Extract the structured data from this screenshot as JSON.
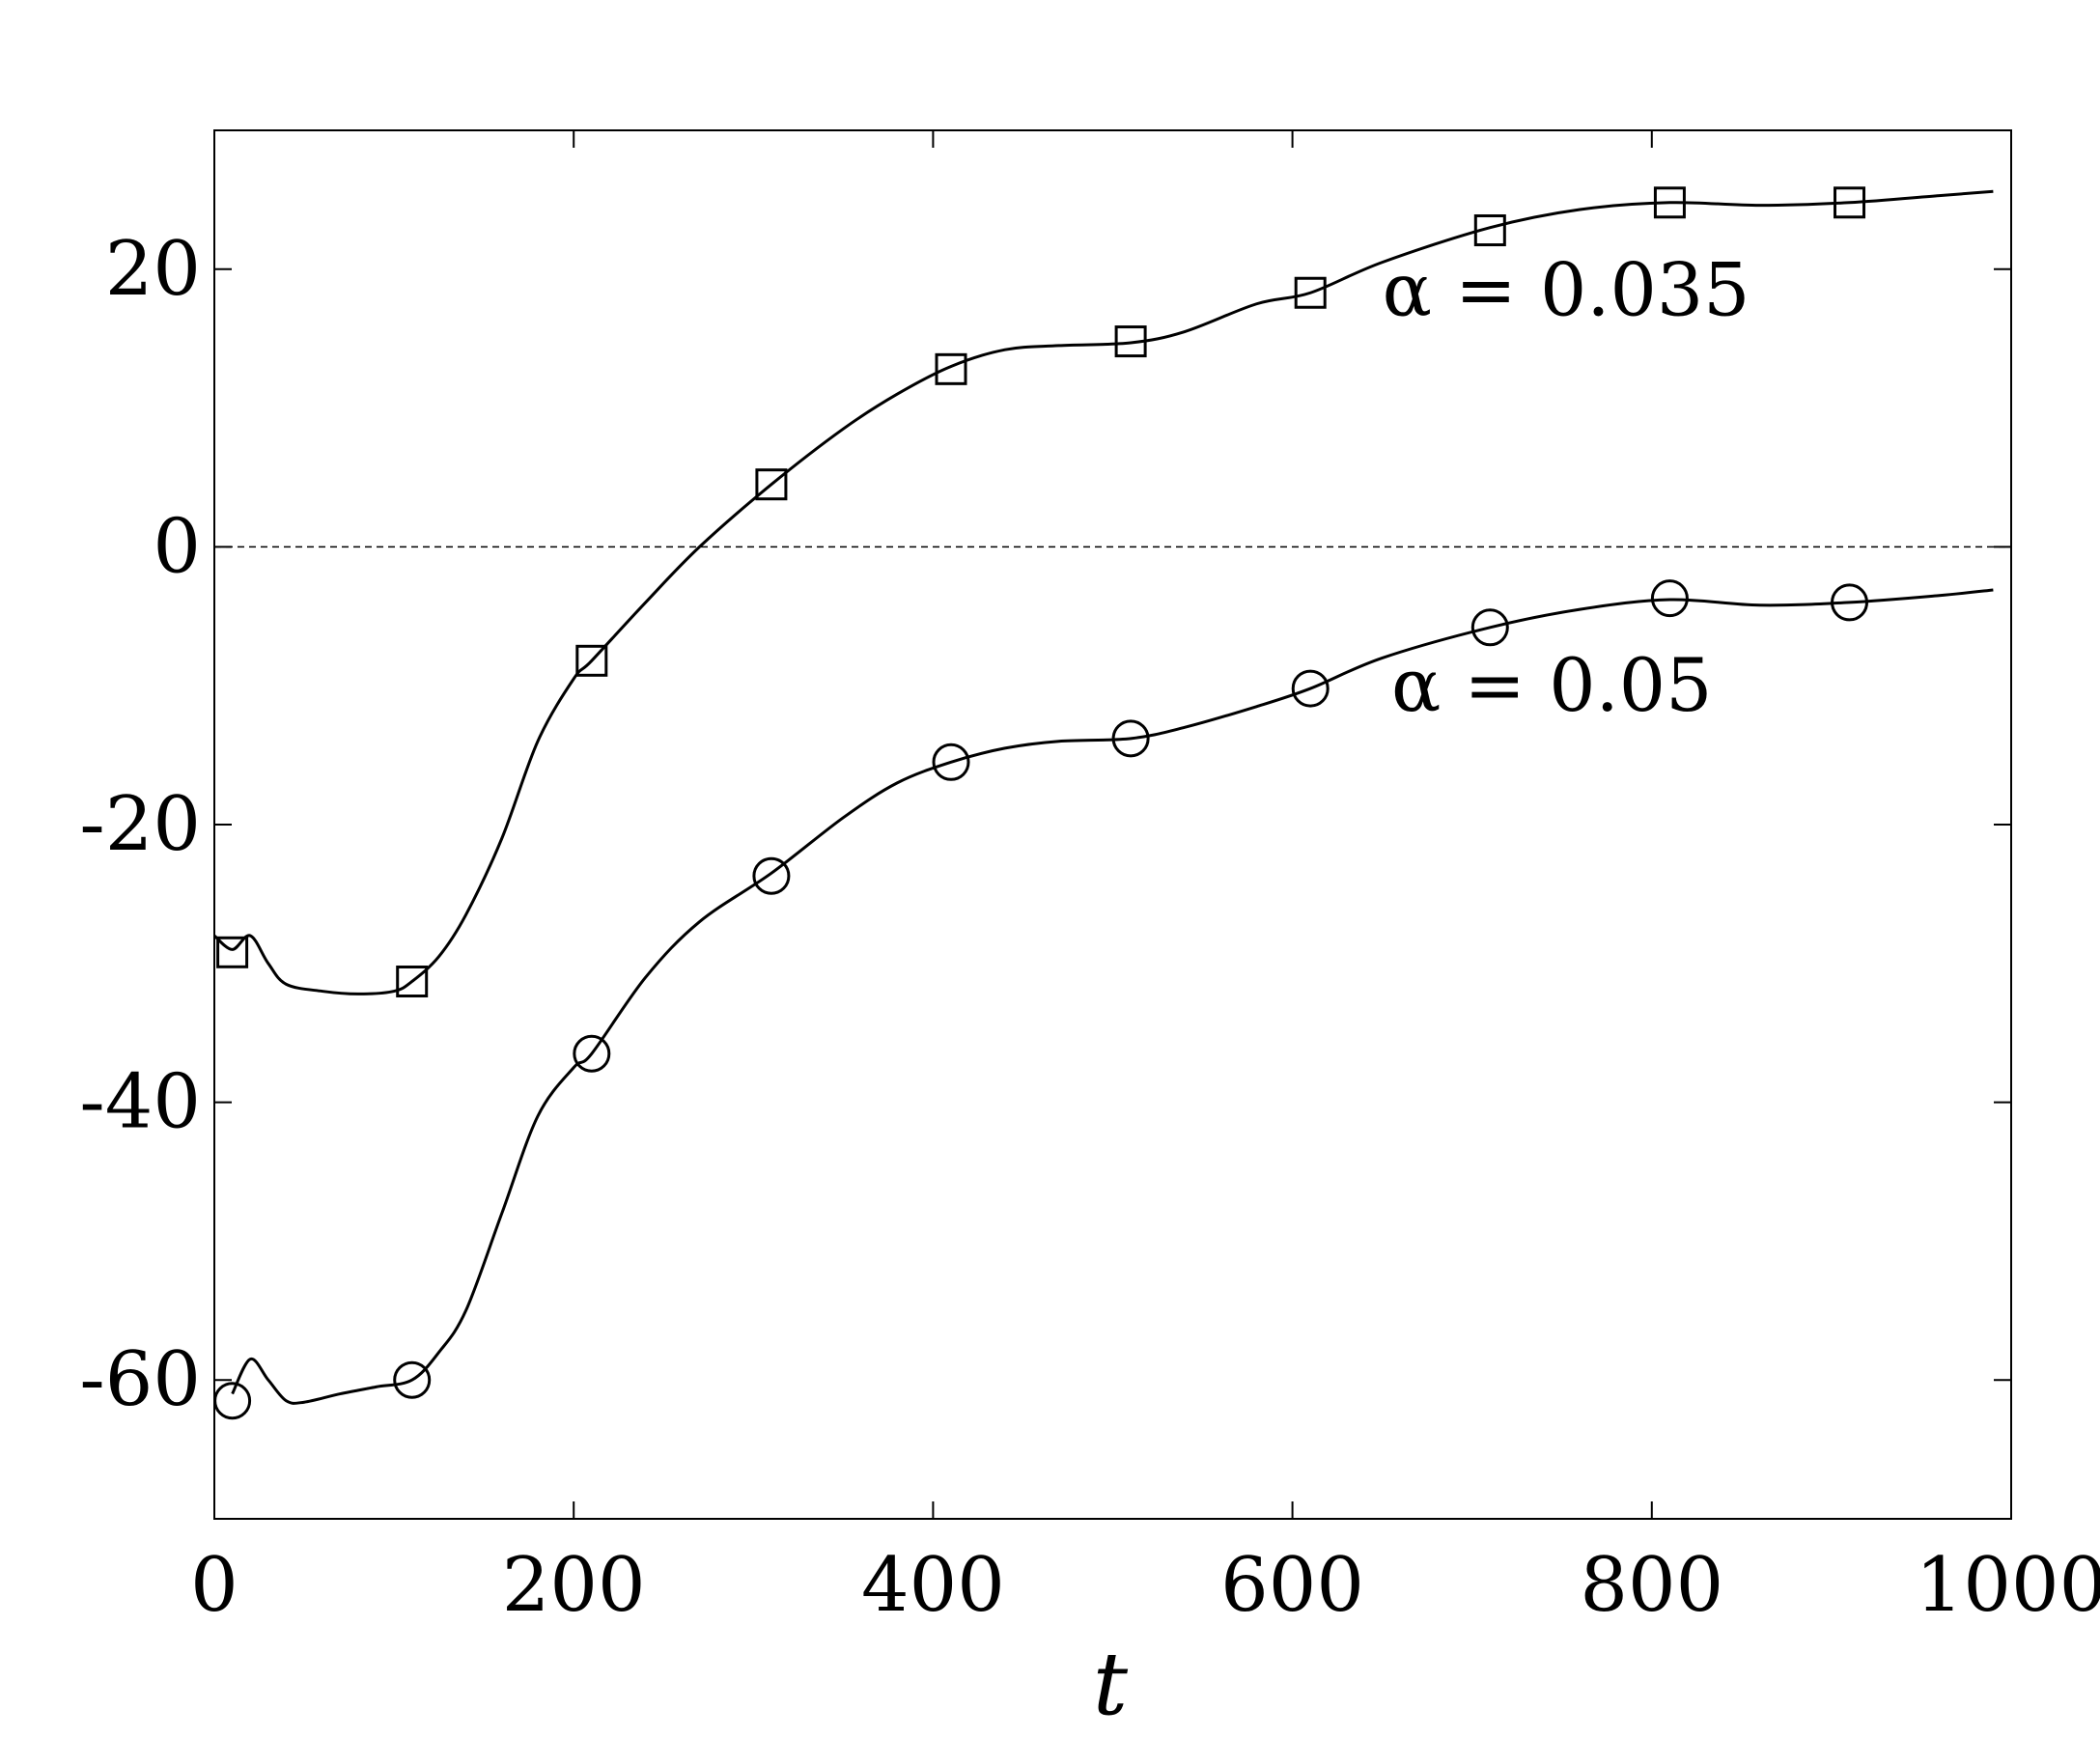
{
  "chart_data": {
    "type": "line",
    "title": "",
    "xlabel": "t",
    "ylabel": "",
    "xlim": [
      0,
      1000
    ],
    "ylim": [
      -70,
      30
    ],
    "xticks": [
      0,
      200,
      400,
      600,
      800,
      1000
    ],
    "xtick_labels": [
      "0",
      "200",
      "400",
      "600",
      "800",
      "1000"
    ],
    "yticks": [
      -60,
      -40,
      -20,
      0,
      20
    ],
    "ytick_labels": [
      "-60",
      "-40",
      "-20",
      "0",
      "20"
    ],
    "grid": false,
    "reference_line": {
      "y": 0,
      "style": "dashed"
    },
    "series": [
      {
        "marker": "square",
        "color": "#000000",
        "x": [
          0,
          10,
          20,
          30,
          40,
          60,
          80,
          100,
          110,
          125,
          140,
          160,
          180,
          200,
          210,
          240,
          270,
          310,
          350,
          380,
          410,
          440,
          470,
          510,
          540,
          580,
          610,
          650,
          710,
          760,
          810,
          860,
          910,
          960,
          990
        ],
        "y": [
          -28,
          -29,
          -28,
          -30,
          -31.5,
          -32,
          -32.2,
          -32,
          -31.3,
          -29.5,
          -26.5,
          -21,
          -14,
          -9.5,
          -8.2,
          -4,
          0,
          4.5,
          8.5,
          11,
          13,
          14.2,
          14.5,
          14.7,
          15.5,
          17.5,
          18.3,
          20.5,
          23,
          24.3,
          24.8,
          24.6,
          24.8,
          25.3,
          25.6
        ],
        "marker_x": [
          10,
          110,
          210,
          310,
          410,
          510,
          610,
          710,
          810,
          910
        ],
        "marker_y": [
          -29.2,
          -31.3,
          -8.2,
          4.5,
          12.8,
          14.8,
          18.3,
          22.8,
          24.8,
          24.8
        ]
      },
      {
        "marker": "circle",
        "color": "#000000",
        "x": [
          10,
          20,
          30,
          40,
          50,
          70,
          90,
          110,
          125,
          140,
          160,
          180,
          200,
          210,
          240,
          270,
          310,
          350,
          380,
          410,
          440,
          470,
          510,
          540,
          580,
          610,
          650,
          710,
          760,
          810,
          860,
          910,
          960,
          990
        ],
        "y": [
          -61,
          -58.5,
          -60,
          -61.5,
          -61.6,
          -61,
          -60.5,
          -60,
          -58,
          -55,
          -48,
          -41,
          -37.5,
          -36.5,
          -31,
          -27,
          -23.5,
          -19.5,
          -17,
          -15.5,
          -14.5,
          -14,
          -13.8,
          -13,
          -11.5,
          -10.2,
          -8,
          -5.8,
          -4.5,
          -3.8,
          -4.2,
          -4,
          -3.5,
          -3.1
        ],
        "marker_x": [
          10,
          110,
          210,
          310,
          410,
          510,
          610,
          710,
          810,
          910
        ],
        "marker_y": [
          -61.5,
          -60,
          -36.5,
          -23.7,
          -15.5,
          -13.8,
          -10.2,
          -5.8,
          -3.7,
          -4
        ]
      }
    ],
    "annotations": [
      {
        "text": "α = 0.035",
        "x": 650,
        "y": 16.7
      },
      {
        "text": "α = 0.05",
        "x": 655,
        "y": -11.8
      }
    ]
  }
}
